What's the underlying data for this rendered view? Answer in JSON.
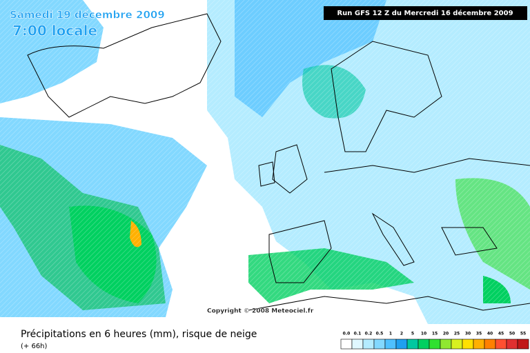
{
  "header": {
    "date": "Samedi 19 décembre 2009",
    "time": "7:00 locale",
    "run": "Run GFS 12 Z du Mercredi 16 décembre 2009"
  },
  "copyright": "Copyright © 2008 Meteociel.fr",
  "footer": {
    "title": "Précipitations en 6 heures (mm), risque de neige",
    "lead": "(+ 66h)"
  },
  "legend": {
    "labels": [
      "0.0",
      "0.1",
      "0.2",
      "0.5",
      "1",
      "2",
      "5",
      "10",
      "15",
      "20",
      "25",
      "30",
      "35",
      "40",
      "45",
      "50",
      "55"
    ],
    "colors": [
      "#ffffff",
      "#e0f8ff",
      "#b4ecff",
      "#82d8ff",
      "#4ec0ff",
      "#1ea0f0",
      "#00c8a0",
      "#00d060",
      "#30e030",
      "#90e830",
      "#d8f020",
      "#ffe000",
      "#ffb000",
      "#ff8000",
      "#ff5030",
      "#e03030",
      "#c01818"
    ]
  }
}
